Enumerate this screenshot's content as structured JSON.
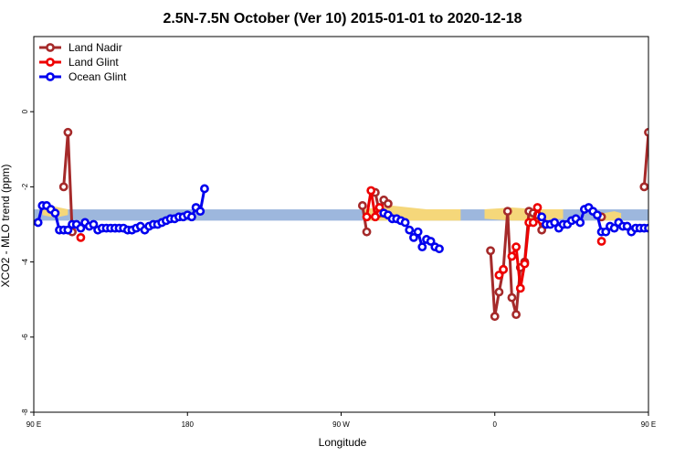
{
  "chart_data": {
    "type": "line",
    "title": "2.5N-7.5N October (Ver 10)   2015-01-01 to 2020-12-18",
    "xlabel": "Longitude",
    "ylabel": "XCO2 - MLO trend (ppm)",
    "xlim": [
      90,
      450
    ],
    "ylim": [
      -8,
      2
    ],
    "xticks": [
      {
        "value": 90,
        "label": "90 E"
      },
      {
        "value": 180,
        "label": "180"
      },
      {
        "value": 270,
        "label": "90 W"
      },
      {
        "value": 360,
        "label": "0"
      },
      {
        "value": 450,
        "label": "90 E"
      },
      {
        "value": 540,
        "label": "180"
      }
    ],
    "yticks": [
      {
        "value": 0,
        "label": "0"
      },
      {
        "value": -2,
        "label": "-2"
      },
      {
        "value": -4,
        "label": "-4"
      },
      {
        "value": -6,
        "label": "-6"
      },
      {
        "value": -8,
        "label": "-8"
      }
    ],
    "legend_position": "top-left",
    "reference_band": {
      "ymin": -2.9,
      "ymax": -2.6,
      "color": "#9db7dd"
    },
    "land_shading": {
      "color": "#f5d77a",
      "regions": [
        {
          "x": [
            95,
            100,
            105,
            110
          ],
          "ymin": [
            -2.75,
            -2.8,
            -2.8,
            -2.75
          ],
          "ymax": [
            -2.55,
            -2.5,
            -2.55,
            -2.6
          ]
        },
        {
          "x": [
            283,
            300,
            320,
            340
          ],
          "ymin": [
            -2.9,
            -2.9,
            -2.9,
            -2.9
          ],
          "ymax": [
            -2.6,
            -2.5,
            -2.6,
            -2.6
          ]
        },
        {
          "x": [
            354,
            370,
            385,
            400
          ],
          "ymin": [
            -2.85,
            -2.9,
            -2.9,
            -2.85
          ],
          "ymax": [
            -2.6,
            -2.55,
            -2.6,
            -2.6
          ]
        },
        {
          "x": [
            424,
            430,
            434
          ],
          "ymin": [
            -2.9,
            -2.9,
            -2.9
          ],
          "ymax": [
            -2.7,
            -2.65,
            -2.7
          ]
        },
        {
          "x": [
            462,
            470,
            478
          ],
          "ymin": [
            -2.9,
            -2.95,
            -2.9
          ],
          "ymax": [
            -2.65,
            -2.6,
            -2.65
          ]
        },
        {
          "x": [
            498,
            502
          ],
          "ymin": [
            -2.9,
            -2.9
          ],
          "ymax": [
            -2.7,
            -2.7
          ]
        }
      ]
    },
    "series": [
      {
        "name": "Land Nadir",
        "color": "#a52a2a",
        "segments": [
          [
            [
              107.5,
              -2.0
            ],
            [
              110.0,
              -0.55
            ],
            [
              112.5,
              -3.2
            ]
          ],
          [
            [
              282.5,
              -2.5
            ],
            [
              285.0,
              -3.2
            ]
          ],
          [
            [
              290.0,
              -2.15
            ],
            [
              292.5,
              -2.7
            ],
            [
              295.0,
              -2.35
            ],
            [
              297.5,
              -2.45
            ]
          ],
          [
            [
              357.5,
              -3.7
            ],
            [
              360.0,
              -5.45
            ],
            [
              362.5,
              -4.8
            ],
            [
              365.0,
              -4.2
            ],
            [
              367.5,
              -2.65
            ],
            [
              370.0,
              -4.95
            ],
            [
              372.5,
              -5.4
            ],
            [
              375.0,
              -4.15
            ],
            [
              377.5,
              -4.0
            ],
            [
              380.0,
              -2.65
            ],
            [
              382.5,
              -2.7
            ],
            [
              385.0,
              -2.75
            ],
            [
              387.5,
              -3.15
            ]
          ],
          [
            [
              422.5,
              -2.8
            ]
          ],
          [
            [
              447.5,
              -2.0
            ],
            [
              450.0,
              -0.55
            ],
            [
              452.5,
              -3.2
            ]
          ]
        ]
      },
      {
        "name": "Land Glint",
        "color": "#ee0000",
        "segments": [
          [
            [
              117.5,
              -3.35
            ]
          ],
          [
            [
              285.0,
              -2.8
            ],
            [
              287.5,
              -2.1
            ],
            [
              290.0,
              -2.8
            ],
            [
              292.5,
              -2.55
            ],
            [
              295.0,
              -2.7
            ]
          ],
          [
            [
              362.5,
              -4.35
            ],
            [
              365.0,
              -4.2
            ]
          ],
          [
            [
              370.0,
              -3.85
            ],
            [
              372.5,
              -3.6
            ],
            [
              375.0,
              -4.7
            ],
            [
              377.5,
              -4.05
            ],
            [
              380.0,
              -2.95
            ],
            [
              382.5,
              -2.95
            ],
            [
              385.0,
              -2.55
            ],
            [
              387.5,
              -2.9
            ]
          ],
          [
            [
              422.5,
              -3.45
            ]
          ],
          [
            [
              452.5,
              -3.15
            ],
            [
              455.0,
              -3.35
            ]
          ]
        ]
      },
      {
        "name": "Ocean Glint",
        "color": "#0000ee",
        "segments": [
          [
            [
              92.5,
              -2.95
            ],
            [
              95.0,
              -2.5
            ],
            [
              97.5,
              -2.5
            ],
            [
              100.0,
              -2.6
            ],
            [
              102.5,
              -2.7
            ],
            [
              105.0,
              -3.15
            ],
            [
              107.5,
              -3.15
            ],
            [
              110.0,
              -3.15
            ],
            [
              112.5,
              -3.0
            ],
            [
              115.0,
              -3.0
            ],
            [
              117.5,
              -3.1
            ],
            [
              120.0,
              -2.95
            ],
            [
              122.5,
              -3.05
            ],
            [
              125.0,
              -3.0
            ],
            [
              127.5,
              -3.15
            ],
            [
              130.0,
              -3.1
            ],
            [
              132.5,
              -3.1
            ],
            [
              135.0,
              -3.1
            ],
            [
              137.5,
              -3.1
            ],
            [
              140.0,
              -3.1
            ],
            [
              142.5,
              -3.1
            ],
            [
              145.0,
              -3.15
            ],
            [
              147.5,
              -3.15
            ],
            [
              150.0,
              -3.1
            ],
            [
              152.5,
              -3.05
            ],
            [
              155.0,
              -3.15
            ],
            [
              157.5,
              -3.05
            ],
            [
              160.0,
              -3.0
            ],
            [
              162.5,
              -3.0
            ],
            [
              165.0,
              -2.95
            ],
            [
              167.5,
              -2.9
            ],
            [
              170.0,
              -2.85
            ],
            [
              172.5,
              -2.85
            ],
            [
              175.0,
              -2.8
            ],
            [
              177.5,
              -2.8
            ],
            [
              180.0,
              -2.75
            ],
            [
              182.5,
              -2.8
            ],
            [
              185.0,
              -2.55
            ],
            [
              187.5,
              -2.65
            ],
            [
              190.0,
              -2.05
            ]
          ],
          [
            [
              295.0,
              -2.7
            ],
            [
              297.5,
              -2.75
            ],
            [
              300.0,
              -2.85
            ],
            [
              302.5,
              -2.85
            ],
            [
              305.0,
              -2.9
            ],
            [
              307.5,
              -2.95
            ],
            [
              310.0,
              -3.15
            ],
            [
              312.5,
              -3.35
            ],
            [
              315.0,
              -3.2
            ],
            [
              317.5,
              -3.6
            ],
            [
              320.0,
              -3.4
            ],
            [
              322.5,
              -3.45
            ],
            [
              325.0,
              -3.6
            ],
            [
              327.5,
              -3.65
            ]
          ],
          [
            [
              387.5,
              -2.8
            ],
            [
              390.0,
              -3.0
            ],
            [
              392.5,
              -3.0
            ],
            [
              395.0,
              -2.95
            ],
            [
              397.5,
              -3.1
            ],
            [
              400.0,
              -3.0
            ],
            [
              402.5,
              -3.0
            ],
            [
              405.0,
              -2.9
            ],
            [
              407.5,
              -2.85
            ],
            [
              410.0,
              -2.95
            ],
            [
              412.5,
              -2.6
            ],
            [
              415.0,
              -2.55
            ],
            [
              417.5,
              -2.65
            ],
            [
              420.0,
              -2.75
            ],
            [
              422.5,
              -3.2
            ],
            [
              425.0,
              -3.2
            ],
            [
              427.5,
              -3.05
            ],
            [
              430.0,
              -3.1
            ],
            [
              432.5,
              -2.95
            ],
            [
              435.0,
              -3.05
            ],
            [
              437.5,
              -3.05
            ],
            [
              440.0,
              -3.2
            ],
            [
              442.5,
              -3.1
            ],
            [
              445.0,
              -3.1
            ],
            [
              447.5,
              -3.1
            ],
            [
              450.0,
              -3.1
            ]
          ]
        ]
      }
    ]
  }
}
